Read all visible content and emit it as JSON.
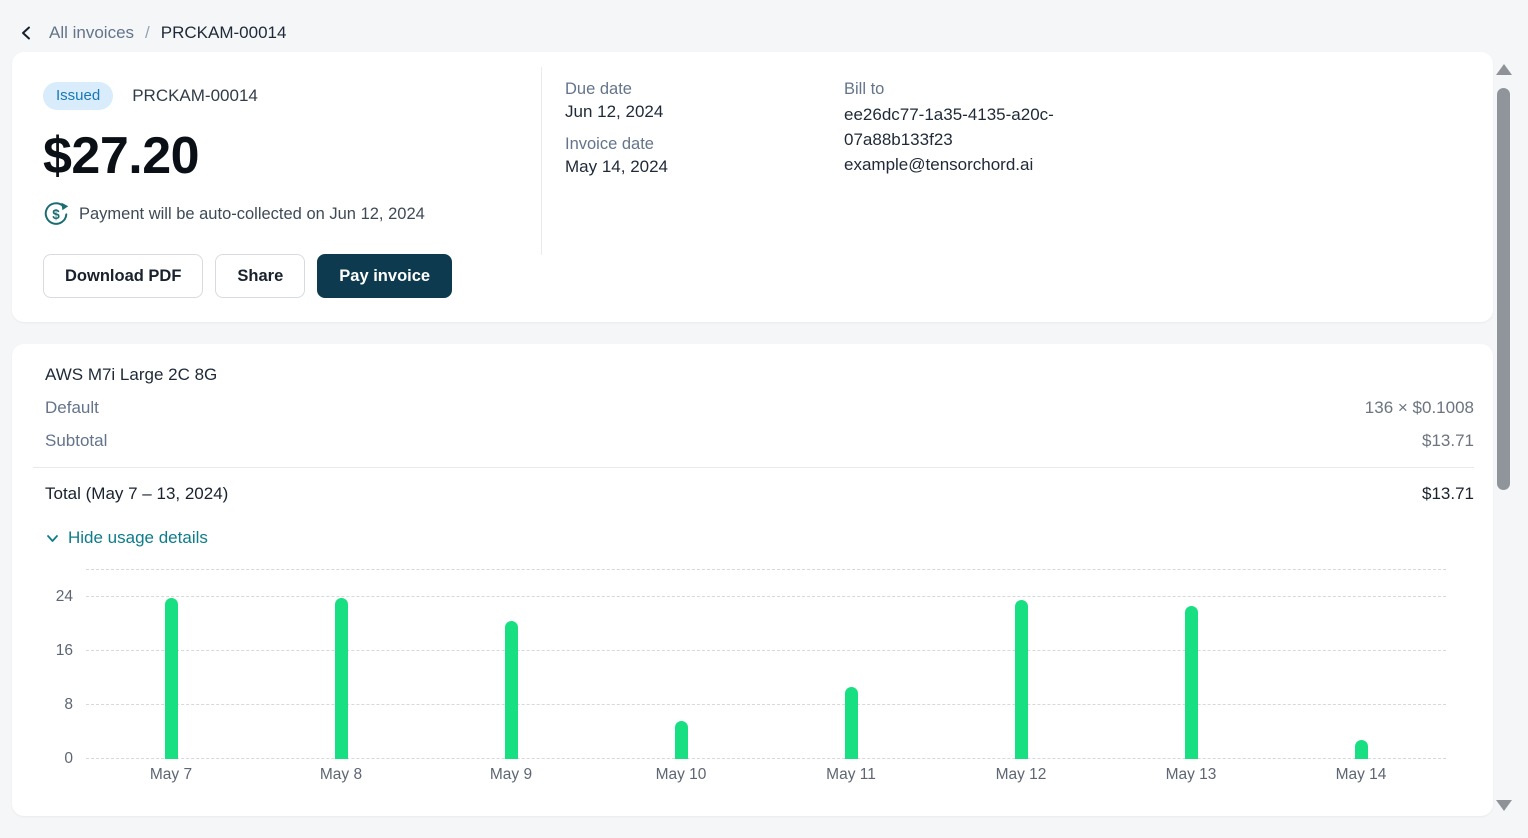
{
  "breadcrumb": {
    "parent": "All invoices",
    "separator": "/",
    "current": "PRCKAM-00014"
  },
  "invoice": {
    "status": "Issued",
    "number": "PRCKAM-00014",
    "amount": "$27.20",
    "auto_collect_note": "Payment will be auto-collected on Jun 12, 2024",
    "buttons": {
      "download": "Download PDF",
      "share": "Share",
      "pay": "Pay invoice"
    },
    "due_date_label": "Due date",
    "due_date": "Jun 12, 2024",
    "invoice_date_label": "Invoice date",
    "invoice_date": "May 14, 2024",
    "bill_to_label": "Bill to",
    "bill_to_id": "ee26dc77-1a35-4135-a20c-07a88b133f23",
    "bill_to_email": "example@tensorchord.ai"
  },
  "line_items": {
    "product": "AWS M7i Large 2C 8G",
    "rows": [
      {
        "label": "Default",
        "value": "136 × $0.1008"
      },
      {
        "label": "Subtotal",
        "value": "$13.71"
      }
    ],
    "total_label": "Total (May 7 – 13, 2024)",
    "total_value": "$13.71",
    "usage_toggle": "Hide usage details"
  },
  "chart_data": {
    "type": "bar",
    "categories": [
      "May 7",
      "May 8",
      "May 9",
      "May 10",
      "May 11",
      "May 12",
      "May 13",
      "May 14"
    ],
    "values": [
      23.9,
      23.9,
      20.5,
      5.6,
      10.7,
      23.6,
      22.6,
      2.8
    ],
    "title": "",
    "xlabel": "",
    "ylabel": "",
    "yticks": [
      0,
      8,
      16,
      24
    ],
    "ylim": [
      0,
      28
    ],
    "grid": true,
    "legend": false,
    "bar_color": "#17df82"
  },
  "icons": {
    "back": "chevron-left-icon",
    "payment": "dollar-refresh-icon",
    "usage_toggle": "chevron-down-icon",
    "scroll_up": "triangle-up-icon",
    "scroll_down": "triangle-down-icon"
  },
  "colors": {
    "badge_bg": "#d9ecfb",
    "badge_text": "#1878b6",
    "primary_button": "#0d3a4e",
    "link_teal": "#0e7c8a",
    "bar_green": "#17df82",
    "page_bg": "#f5f6f8",
    "card_bg": "#ffffff"
  }
}
